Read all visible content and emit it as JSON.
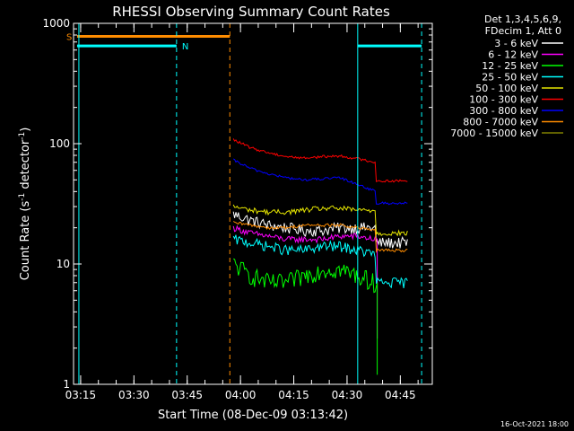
{
  "chart_data": {
    "type": "line",
    "title": "RHESSI Observing Summary Count Rates",
    "xlabel": "Start Time (08-Dec-09 03:13:42)",
    "ylabel_parts": {
      "pre": "Count Rate (s",
      "sup1": "-1",
      "mid": " detector",
      "sup2": "-1",
      "post": ")"
    },
    "yscale": "log",
    "ylim": [
      1,
      1000
    ],
    "xlim_minutes": [
      -2,
      99
    ],
    "y_ticks": [
      1,
      10,
      100,
      1000
    ],
    "y_tick_labels": [
      "1",
      "10",
      "100",
      "1000"
    ],
    "x_ticks_minutes": [
      0,
      15,
      30,
      45,
      60,
      75,
      90
    ],
    "x_tick_labels": [
      "03:15",
      "03:30",
      "03:45",
      "04:00",
      "04:15",
      "04:30",
      "04:45"
    ],
    "legend_header": [
      "Det 1,3,4,5,6,9,",
      "FDecim 1, Att 0"
    ],
    "legend_position": "right",
    "footer": "16-Oct-2021 18:00",
    "colors": {
      "background": "#000000",
      "axes": "#ffffff",
      "text": "#ffffff",
      "saa_flag": "#ff8c00",
      "night_flag": "#00ffff"
    },
    "flags": [
      {
        "label": "S",
        "value": 780,
        "start": -1,
        "end": 42,
        "color": "#ff8c00"
      },
      {
        "label": "N",
        "value": 650,
        "start": -1,
        "end": 27,
        "color": "#00ffff"
      },
      {
        "label": "",
        "value": 650,
        "start": 78,
        "end": 96,
        "color": "#00ffff"
      }
    ],
    "vertical_lines": [
      {
        "minute": -0.5,
        "color": "#00ffff",
        "dashed": false
      },
      {
        "minute": 27,
        "color": "#00ffff",
        "dashed": true
      },
      {
        "minute": 42,
        "color": "#ff8c00",
        "dashed": true
      },
      {
        "minute": 78,
        "color": "#00ffff",
        "dashed": false
      },
      {
        "minute": 96,
        "color": "#00ffff",
        "dashed": true
      }
    ],
    "series": [
      {
        "name": "3 - 6 keV",
        "color": "#ffffff",
        "noise": 0.11,
        "points": [
          [
            43,
            26
          ],
          [
            48,
            23
          ],
          [
            53,
            21
          ],
          [
            58,
            20
          ],
          [
            63,
            19
          ],
          [
            68,
            19
          ],
          [
            73,
            20
          ],
          [
            78,
            20
          ],
          [
            83,
            20
          ],
          [
            88,
            19
          ],
          [
            92,
            18
          ]
        ],
        "step": {
          "minute": 83,
          "value": 15
        },
        "dip": null
      },
      {
        "name": "6 - 12 keV",
        "color": "#ff00ff",
        "noise": 0.06,
        "points": [
          [
            43,
            20
          ],
          [
            48,
            18
          ],
          [
            53,
            17
          ],
          [
            58,
            16
          ],
          [
            63,
            16
          ],
          [
            68,
            16
          ],
          [
            73,
            17
          ],
          [
            78,
            17
          ],
          [
            83,
            16
          ]
        ],
        "step": null,
        "dip": {
          "minute": 83.5,
          "value": 2.4
        }
      },
      {
        "name": "12 - 25 keV",
        "color": "#00ff00",
        "noise": 0.18,
        "points": [
          [
            43,
            10
          ],
          [
            48,
            8
          ],
          [
            53,
            7
          ],
          [
            58,
            7
          ],
          [
            63,
            8
          ],
          [
            68,
            9
          ],
          [
            73,
            9
          ],
          [
            78,
            8
          ],
          [
            83,
            7
          ]
        ],
        "step": null,
        "dip": {
          "minute": 83.5,
          "value": 1.2
        }
      },
      {
        "name": "25 - 50 keV",
        "color": "#00ffff",
        "noise": 0.1,
        "points": [
          [
            43,
            16
          ],
          [
            48,
            15
          ],
          [
            53,
            14
          ],
          [
            58,
            13
          ],
          [
            63,
            13
          ],
          [
            68,
            14
          ],
          [
            73,
            14
          ],
          [
            78,
            13
          ],
          [
            83,
            12
          ],
          [
            88,
            7
          ],
          [
            92,
            7
          ]
        ],
        "step": {
          "minute": 83,
          "value": 7
        },
        "dip": null
      },
      {
        "name": "50 - 100 keV",
        "color": "#e6e600",
        "noise": 0.05,
        "points": [
          [
            43,
            30
          ],
          [
            48,
            28
          ],
          [
            53,
            27
          ],
          [
            58,
            27
          ],
          [
            63,
            28
          ],
          [
            68,
            29
          ],
          [
            73,
            29
          ],
          [
            78,
            28
          ],
          [
            83,
            28
          ],
          [
            88,
            18
          ],
          [
            92,
            17
          ]
        ],
        "step": {
          "minute": 83,
          "value": 18
        },
        "dip": null
      },
      {
        "name": "100 - 300 keV",
        "color": "#ff0000",
        "noise": 0.025,
        "points": [
          [
            43,
            108
          ],
          [
            48,
            92
          ],
          [
            53,
            84
          ],
          [
            58,
            78
          ],
          [
            63,
            76
          ],
          [
            68,
            78
          ],
          [
            73,
            79
          ],
          [
            78,
            75
          ],
          [
            83,
            70
          ],
          [
            88,
            48
          ],
          [
            92,
            47
          ]
        ],
        "step": {
          "minute": 83,
          "value": 49
        },
        "dip": null
      },
      {
        "name": "300 - 800 keV",
        "color": "#0000ff",
        "noise": 0.025,
        "points": [
          [
            43,
            73
          ],
          [
            48,
            62
          ],
          [
            53,
            56
          ],
          [
            58,
            52
          ],
          [
            63,
            50
          ],
          [
            68,
            51
          ],
          [
            73,
            52
          ],
          [
            78,
            46
          ],
          [
            83,
            40
          ],
          [
            88,
            32
          ],
          [
            92,
            31
          ]
        ],
        "step": {
          "minute": 83,
          "value": 32
        },
        "dip": null
      },
      {
        "name": "800 - 7000 keV",
        "color": "#ff8c00",
        "noise": 0.03,
        "points": [
          [
            43,
            22
          ],
          [
            48,
            21
          ],
          [
            53,
            20
          ],
          [
            58,
            20
          ],
          [
            63,
            21
          ],
          [
            68,
            21
          ],
          [
            73,
            21
          ],
          [
            78,
            20
          ],
          [
            83,
            19
          ],
          [
            88,
            13
          ],
          [
            92,
            12
          ]
        ],
        "step": {
          "minute": 83,
          "value": 13
        },
        "dip": null
      },
      {
        "name": "7000 - 15000 keV",
        "color": "#808000",
        "noise": 0,
        "points": [],
        "step": null,
        "dip": null
      }
    ]
  }
}
